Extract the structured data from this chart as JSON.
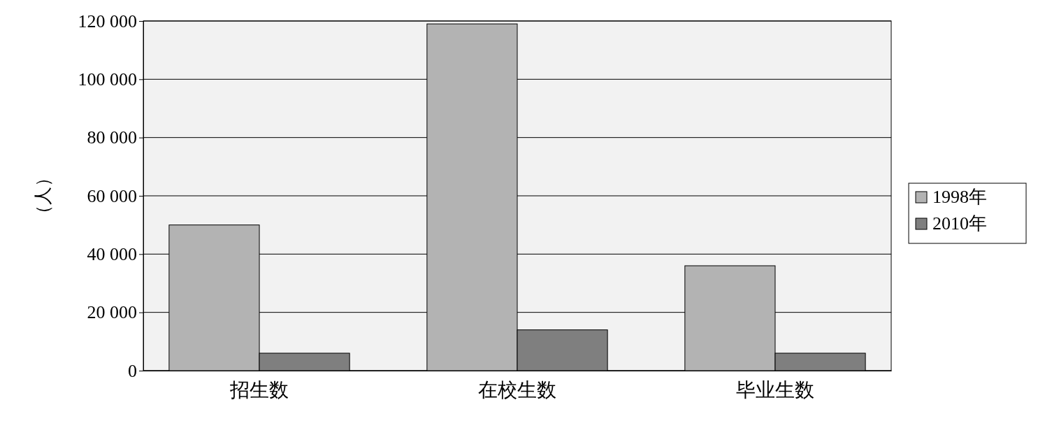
{
  "chart_data": {
    "type": "bar",
    "ylabel": "（人）",
    "categories": [
      "招生数",
      "在校生数",
      "毕业生数"
    ],
    "series": [
      {
        "name": "1998年",
        "color": "#b3b3b3",
        "values": [
          50000,
          119000,
          36000
        ]
      },
      {
        "name": "2010年",
        "color": "#7f7f7f",
        "values": [
          6000,
          14000,
          6000
        ]
      }
    ],
    "ylim": [
      0,
      120000
    ],
    "yticks": [
      {
        "value": 0,
        "label": "0"
      },
      {
        "value": 20000,
        "label": "20 000"
      },
      {
        "value": 40000,
        "label": "40 000"
      },
      {
        "value": 60000,
        "label": "60 000"
      },
      {
        "value": 80000,
        "label": "80 000"
      },
      {
        "value": 100000,
        "label": "100 000"
      },
      {
        "value": 120000,
        "label": "120 000"
      }
    ],
    "grid": "y",
    "legend": "right"
  }
}
